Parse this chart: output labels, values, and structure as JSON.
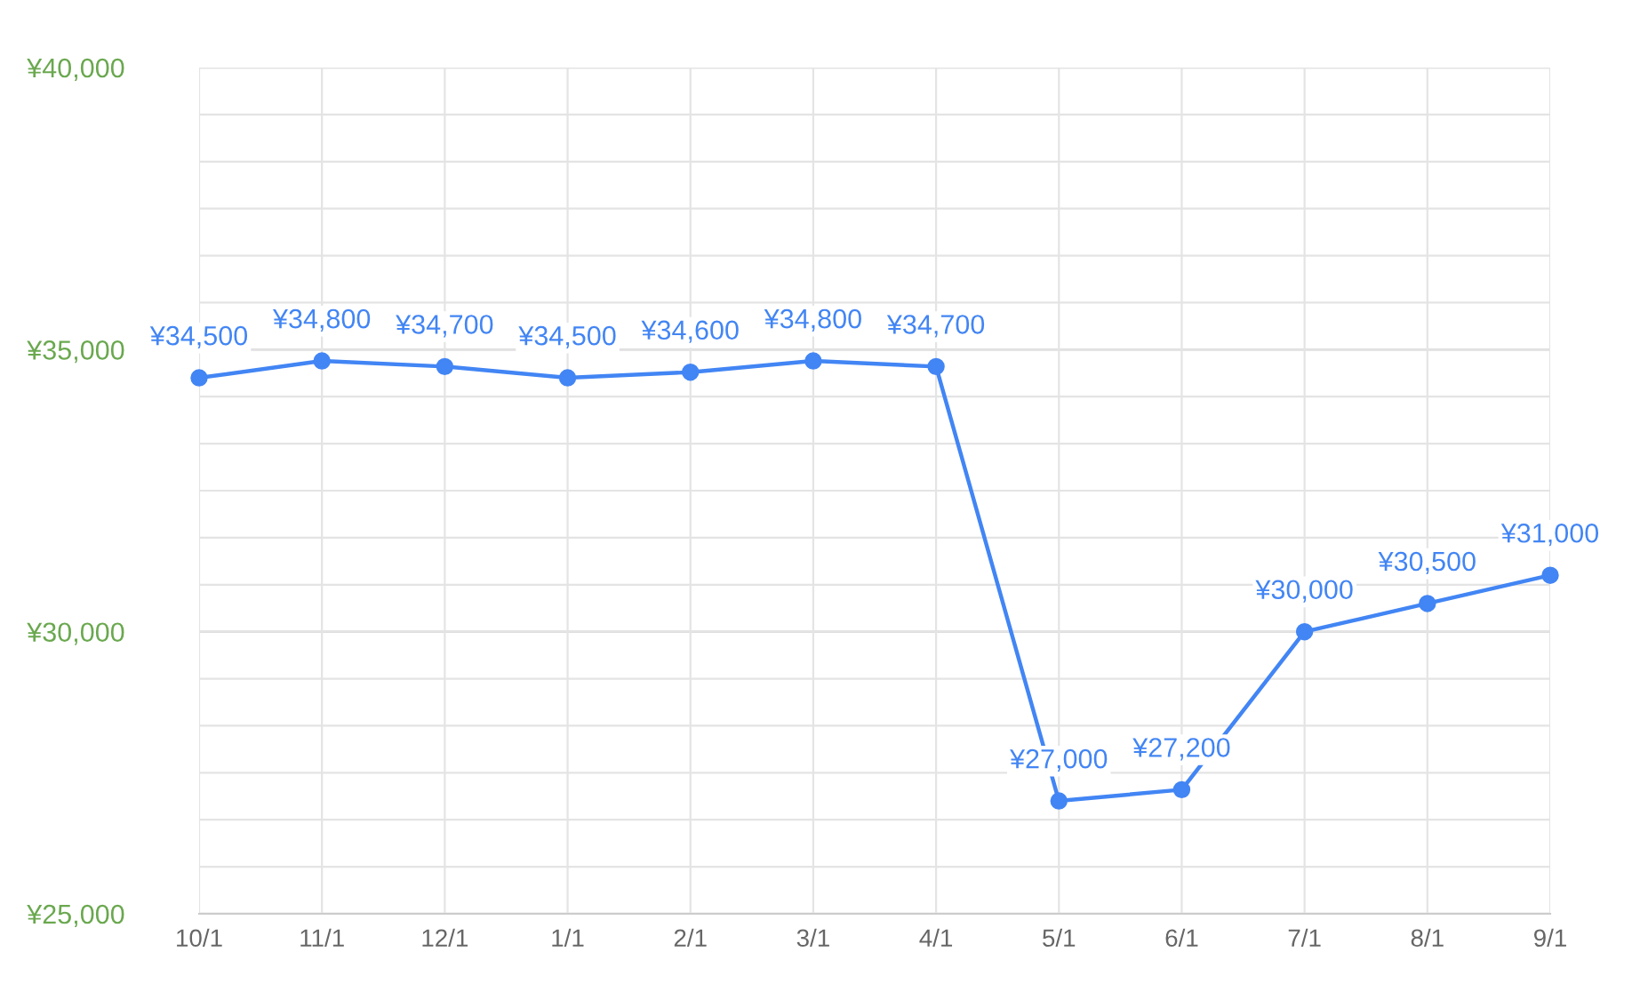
{
  "chart_data": {
    "type": "line",
    "categories": [
      "10/1",
      "11/1",
      "12/1",
      "1/1",
      "2/1",
      "3/1",
      "4/1",
      "5/1",
      "6/1",
      "7/1",
      "8/1",
      "9/1"
    ],
    "series": [
      {
        "color": "#4285f4",
        "values": [
          34500,
          34800,
          34700,
          34500,
          34600,
          34800,
          34700,
          27000,
          27200,
          30000,
          30500,
          31000
        ],
        "value_labels": [
          "¥34,500",
          "¥34,800",
          "¥34,700",
          "¥34,500",
          "¥34,600",
          "¥34,800",
          "¥34,700",
          "¥27,000",
          "¥27,200",
          "¥30,000",
          "¥30,500",
          "¥31,000"
        ]
      }
    ],
    "ylim": [
      25000,
      40000
    ],
    "yticks": [
      {
        "value": 25000,
        "label": "¥25,000"
      },
      {
        "value": 25833,
        "label": null
      },
      {
        "value": 26667,
        "label": null
      },
      {
        "value": 27500,
        "label": null
      },
      {
        "value": 28333,
        "label": null
      },
      {
        "value": 29167,
        "label": null
      },
      {
        "value": 30000,
        "label": "¥30,000"
      },
      {
        "value": 30833,
        "label": null
      },
      {
        "value": 31667,
        "label": null
      },
      {
        "value": 32500,
        "label": null
      },
      {
        "value": 33333,
        "label": null
      },
      {
        "value": 34167,
        "label": null
      },
      {
        "value": 35000,
        "label": "¥35,000"
      },
      {
        "value": 35833,
        "label": null
      },
      {
        "value": 36667,
        "label": null
      },
      {
        "value": 37500,
        "label": null
      },
      {
        "value": 38333,
        "label": null
      },
      {
        "value": 39167,
        "label": null
      },
      {
        "value": 40000,
        "label": "¥40,000"
      }
    ],
    "grid": true,
    "marker": "circle",
    "line_style": "solid",
    "legend": false
  }
}
